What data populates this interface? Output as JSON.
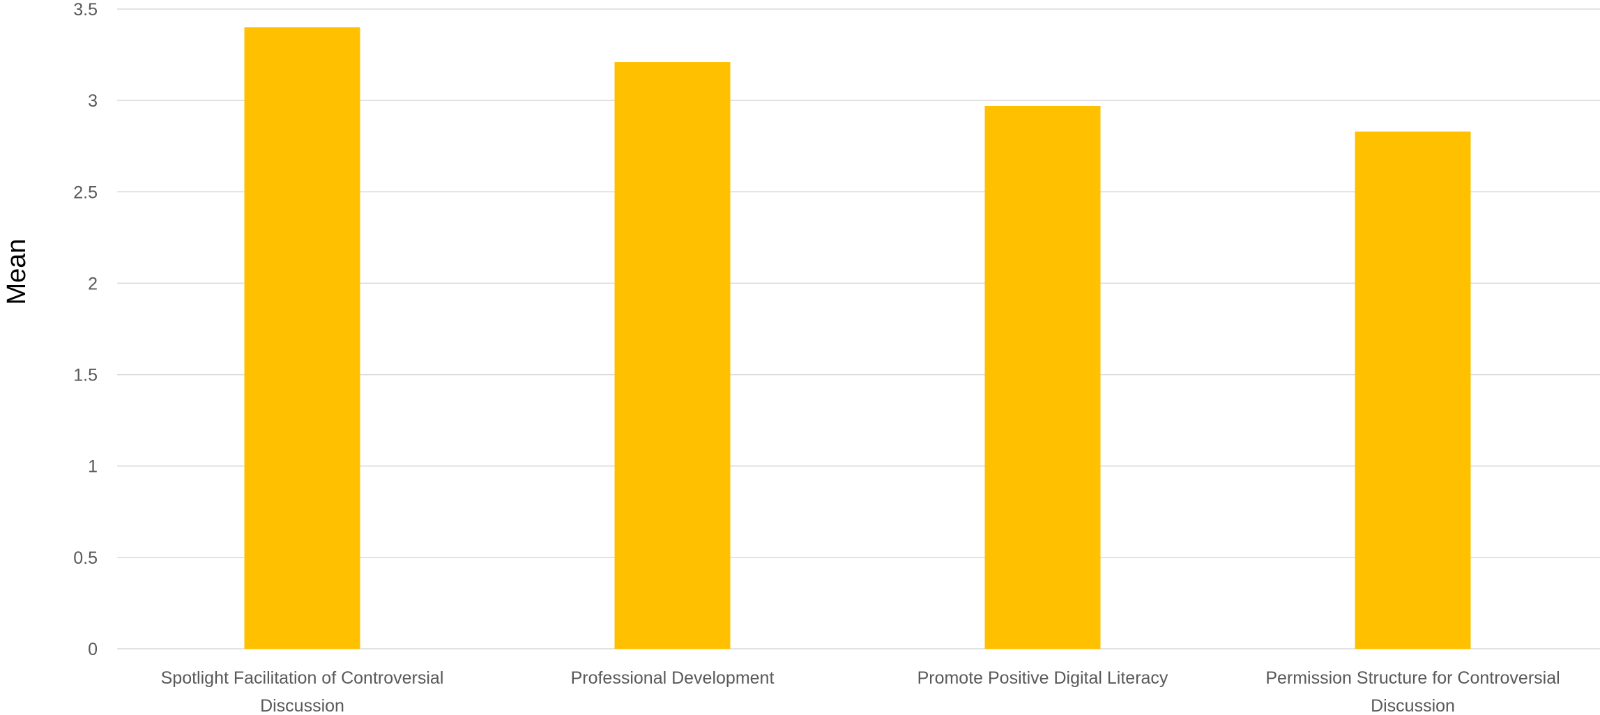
{
  "chart_data": {
    "type": "bar",
    "categories": [
      [
        "Spotlight Facilitation of Controversial",
        "Discussion"
      ],
      [
        "Professional Development"
      ],
      [
        "Promote Positive Digital Literacy"
      ],
      [
        "Permission Structure for Controversial",
        "Discussion"
      ]
    ],
    "values": [
      3.4,
      3.21,
      2.97,
      2.83
    ],
    "title": "",
    "xlabel": "",
    "ylabel": "Mean",
    "ylim": [
      0,
      3.5
    ],
    "yticks": [
      0,
      0.5,
      1,
      1.5,
      2,
      2.5,
      3,
      3.5
    ],
    "ytick_labels": [
      "0",
      "0.5",
      "1",
      "1.5",
      "2",
      "2.5",
      "3",
      "3.5"
    ],
    "grid": true,
    "legend": "none",
    "bar_color": "#FFC000",
    "gridline_color": "#D9D9D9"
  }
}
